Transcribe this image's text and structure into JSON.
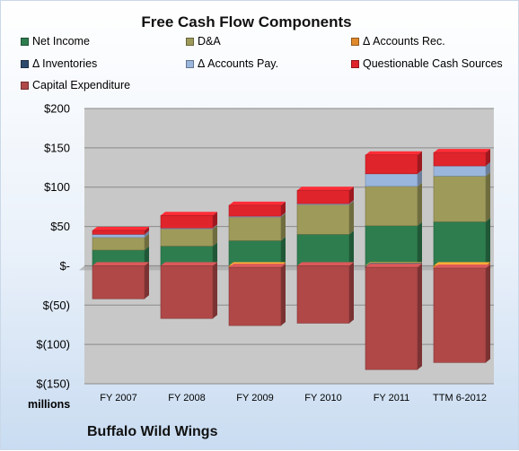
{
  "chart_data": {
    "type": "bar",
    "stacked": true,
    "title": "Free Cash Flow Components",
    "company": "Buffalo Wild Wings",
    "units_label": "millions",
    "categories": [
      "FY 2007",
      "FY 2008",
      "FY 2009",
      "FY 2010",
      "FY 2011",
      "TTM 6-2012"
    ],
    "ylim": [
      -150,
      200
    ],
    "yticks": [
      -150,
      -100,
      -50,
      0,
      50,
      100,
      150,
      200
    ],
    "ytick_labels": [
      "$(150)",
      "$(100)",
      "$(50)",
      "$-",
      "$50",
      "$100",
      "$150",
      "$200"
    ],
    "grid": true,
    "legend_position": "top",
    "series": [
      {
        "name": "Net Income",
        "color": "#2e7d4f",
        "values": [
          20,
          25,
          32,
          40,
          51,
          56
        ]
      },
      {
        "name": "D&A",
        "color": "#9e9a5a",
        "values": [
          16,
          22,
          30,
          38,
          50,
          58
        ]
      },
      {
        "name": "Δ Accounts Rec.",
        "color": "#e08a2c",
        "values": [
          0,
          0,
          -2,
          0,
          -1,
          -3
        ]
      },
      {
        "name": "Δ Inventories",
        "color": "#2c4a6b",
        "values": [
          0,
          0,
          0,
          0,
          -1,
          0
        ]
      },
      {
        "name": "Δ Accounts Pay.",
        "color": "#9ab6dc",
        "values": [
          4,
          1,
          1,
          1,
          16,
          13
        ]
      },
      {
        "name": "Questionable Cash Sources",
        "color": "#e0242c",
        "values": [
          5,
          16,
          14,
          17,
          24,
          17
        ]
      },
      {
        "name": "Capital Expenditure",
        "color": "#b04848",
        "values": [
          -42,
          -67,
          -74,
          -73,
          -130,
          -120
        ]
      }
    ]
  }
}
